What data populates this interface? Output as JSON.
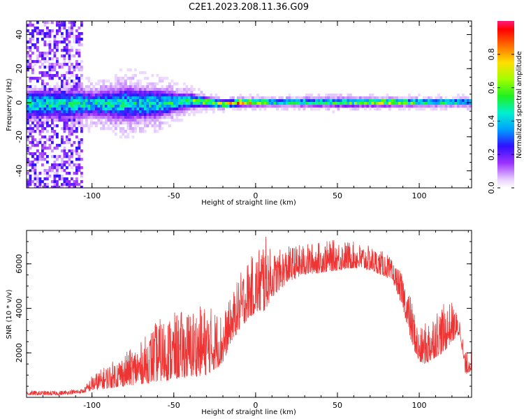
{
  "title": "C2E1.2023.208.11.36.G09",
  "chart_data": [
    {
      "type": "heatmap",
      "xlabel": "Height of straight line (km)",
      "ylabel": "Frequency (Hz)",
      "xlim": [
        -140,
        132
      ],
      "ylim": [
        -50,
        48
      ],
      "x_ticks": [
        -100,
        -50,
        0,
        50,
        100
      ],
      "y_ticks": [
        -40,
        -20,
        0,
        20,
        40
      ],
      "x_tick_labels": [
        "-100",
        "-50",
        "0",
        "50",
        "100"
      ],
      "y_tick_labels": [
        "-40",
        "-20",
        "0",
        "20",
        "40"
      ],
      "colorbar": {
        "label": "Normalized spectral amplitude",
        "range": [
          0,
          1
        ],
        "ticks": [
          0.0,
          0.2,
          0.4,
          0.6,
          0.8
        ],
        "tick_labels": [
          "0.0",
          "0.2",
          "0.4",
          "0.6",
          "0.8"
        ]
      },
      "ridge": {
        "description_points_x": [
          -110,
          -100,
          -80,
          -60,
          -50,
          -40,
          -30,
          -20,
          -10,
          0,
          10,
          50,
          80,
          100,
          132
        ],
        "center_freq": [
          0,
          0,
          0,
          0,
          1,
          2,
          1,
          0,
          1,
          1,
          1,
          1,
          1,
          1,
          1
        ],
        "half_width_hz": [
          6,
          5,
          7,
          6,
          4,
          3,
          2,
          1.5,
          1.5,
          1.5,
          1.5,
          1.8,
          1.5,
          1.5,
          1.5
        ],
        "peak_amplitude": [
          0.5,
          0.5,
          0.5,
          0.5,
          0.55,
          0.6,
          0.7,
          0.9,
          0.95,
          0.9,
          0.55,
          0.6,
          0.85,
          0.6,
          0.55
        ]
      }
    },
    {
      "type": "line",
      "xlabel": "Height of straight line (km)",
      "ylabel": "SNR (10 * v/v)",
      "xlim": [
        -140,
        132
      ],
      "ylim": [
        0,
        7500
      ],
      "x_ticks": [
        -100,
        -50,
        0,
        50,
        100
      ],
      "y_ticks": [
        2000,
        4000,
        6000
      ],
      "x_tick_labels": [
        "-100",
        "-50",
        "0",
        "50",
        "100"
      ],
      "y_tick_labels": [
        "2000",
        "4000",
        "6000"
      ],
      "color": "#ee3333",
      "series": [
        {
          "x": [
            -140,
            -120,
            -105,
            -100,
            -90,
            -80,
            -70,
            -60,
            -50,
            -40,
            -30,
            -20,
            -15,
            -10,
            -5,
            0,
            5,
            10,
            20,
            30,
            40,
            50,
            60,
            70,
            80,
            85,
            90,
            95,
            100,
            105,
            110,
            115,
            120,
            125,
            128,
            132
          ],
          "envelope_low": [
            100,
            100,
            200,
            300,
            400,
            500,
            600,
            700,
            800,
            900,
            1000,
            1500,
            2500,
            3000,
            3500,
            3800,
            3800,
            4500,
            5200,
            5500,
            5600,
            5700,
            5800,
            5700,
            5400,
            5000,
            4000,
            2500,
            1500,
            1500,
            1800,
            2000,
            2500,
            2800,
            1000,
            1200
          ],
          "envelope_high": [
            300,
            300,
            400,
            1000,
            1500,
            2000,
            2500,
            3500,
            3800,
            4000,
            4200,
            3800,
            4500,
            5500,
            6200,
            6500,
            7500,
            6500,
            6800,
            6900,
            7000,
            7100,
            7000,
            6800,
            6500,
            6000,
            5500,
            4500,
            3000,
            3500,
            4000,
            4200,
            4300,
            3500,
            2000,
            2200
          ]
        }
      ]
    }
  ]
}
